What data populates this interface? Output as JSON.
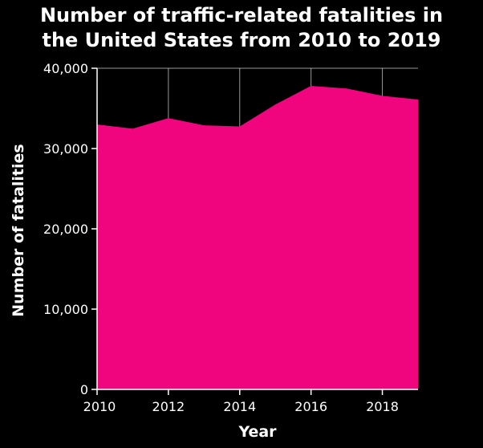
{
  "chart_data": {
    "type": "area",
    "title": "Number of traffic-related fatalities in\nthe United States from 2010 to 2019",
    "xlabel": "Year",
    "ylabel": "Number of fatalities",
    "x": [
      2010,
      2011,
      2012,
      2013,
      2014,
      2015,
      2016,
      2017,
      2018,
      2019
    ],
    "series": [
      {
        "values": [
          32999,
          32479,
          33782,
          32893,
          32744,
          35484,
          37806,
          37473,
          36560,
          36096
        ]
      }
    ],
    "xlim": [
      2010,
      2019
    ],
    "ylim": [
      0,
      40000
    ],
    "x_ticks": [
      2010,
      2012,
      2014,
      2016,
      2018
    ],
    "x_tick_labels": [
      "2010",
      "2012",
      "2014",
      "2016",
      "2018"
    ],
    "y_ticks": [
      0,
      10000,
      20000,
      30000,
      40000
    ],
    "y_tick_labels": [
      "0",
      "10,000",
      "20,000",
      "30,000",
      "40,000"
    ],
    "grid": "vertical",
    "legend": "none",
    "colors": {
      "background": "#000000",
      "fill": "#f0057e",
      "text": "#ffffff",
      "grid": "#ffffff"
    }
  }
}
